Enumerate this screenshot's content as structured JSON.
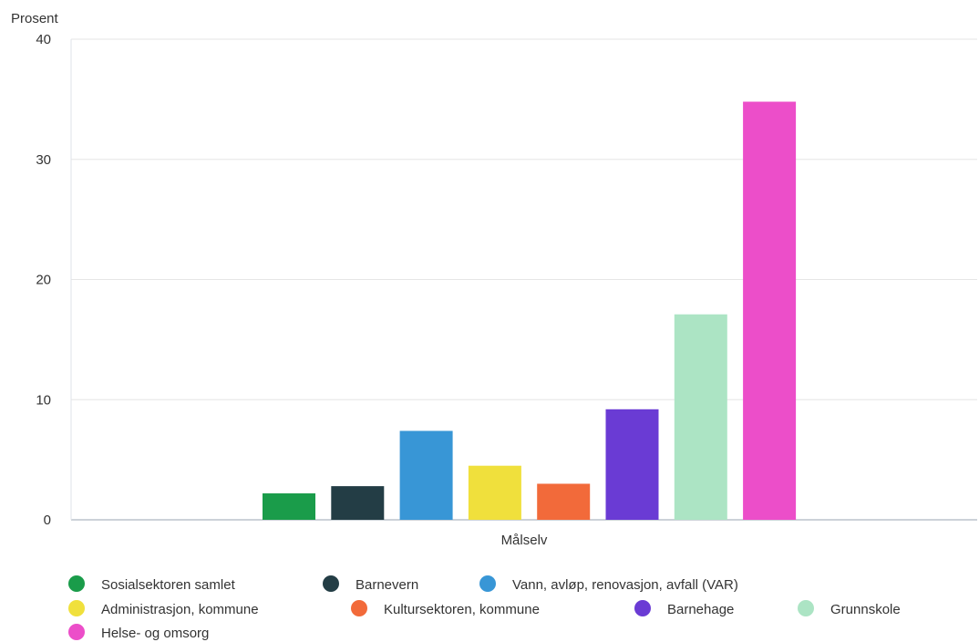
{
  "chart_data": {
    "type": "bar",
    "ylabel": "Prosent",
    "xlabel": "",
    "categories": [
      "Målselv"
    ],
    "ylim": [
      0,
      40
    ],
    "yticks": [
      0,
      10,
      20,
      30,
      40
    ],
    "grid": true,
    "legend_position": "bottom",
    "series": [
      {
        "name": "Sosialsektoren samlet",
        "values": [
          2.2
        ],
        "color": "#1a9c4a"
      },
      {
        "name": "Barnevern",
        "values": [
          2.8
        ],
        "color": "#233d45"
      },
      {
        "name": "Vann, avløp, renovasjon, avfall (VAR)",
        "values": [
          7.4
        ],
        "color": "#3896d6"
      },
      {
        "name": "Administrasjon, kommune",
        "values": [
          4.5
        ],
        "color": "#f0e03c"
      },
      {
        "name": "Kultursektoren, kommune",
        "values": [
          3.0
        ],
        "color": "#f26a3a"
      },
      {
        "name": "Barnehage",
        "values": [
          9.2
        ],
        "color": "#6a3bd4"
      },
      {
        "name": "Grunnskole",
        "values": [
          17.1
        ],
        "color": "#ace4c4"
      },
      {
        "name": "Helse- og omsorg",
        "values": [
          34.8
        ],
        "color": "#ec4ec9"
      }
    ]
  }
}
